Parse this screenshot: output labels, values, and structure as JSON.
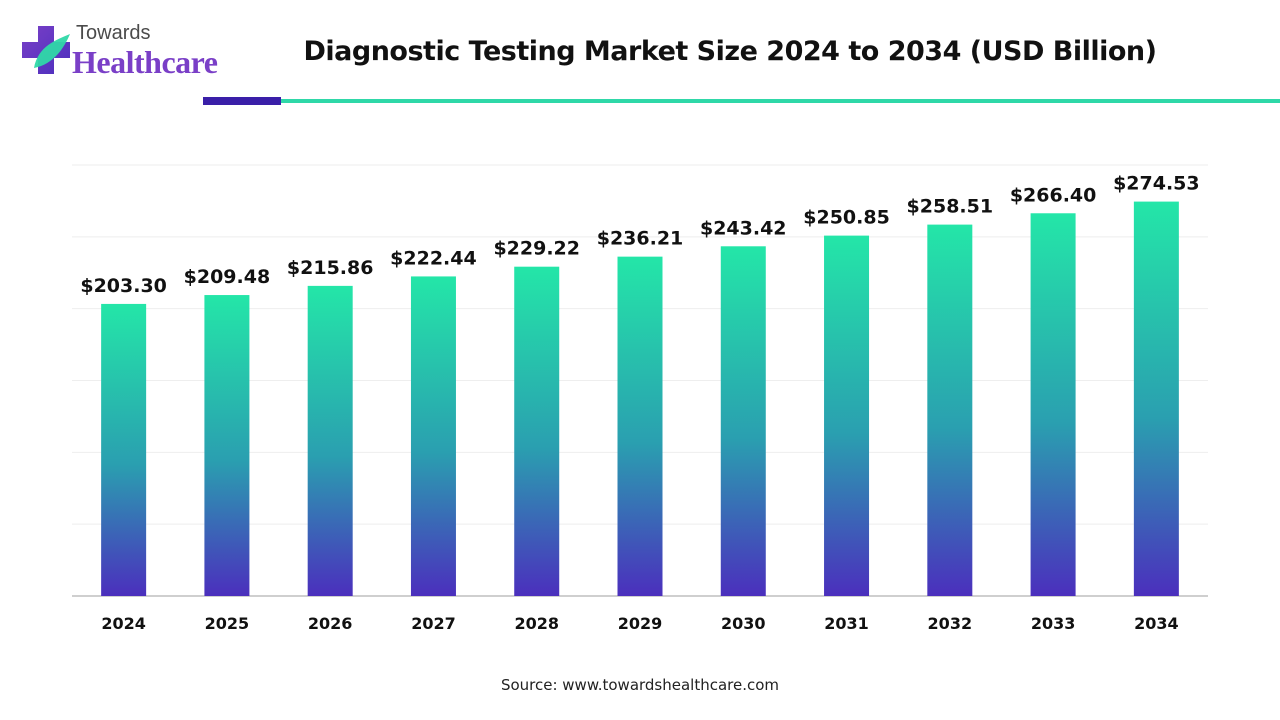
{
  "brand": {
    "top": "Towards",
    "main": "Healthcare"
  },
  "header": {
    "title": "Diagnostic Testing Market Size 2024 to 2034 (USD Billion)"
  },
  "footer": {
    "source": "Source: www.towardshealthcare.com"
  },
  "colors": {
    "bar_top": "#24e6a8",
    "bar_mid": "#2a9fb0",
    "bar_bottom": "#4b2fbd",
    "accent_dark": "#3a1fa8",
    "accent_teal": "#2fd8a8"
  },
  "chart_data": {
    "type": "bar",
    "title": "Diagnostic Testing Market Size 2024 to 2034 (USD Billion)",
    "categories": [
      "2024",
      "2025",
      "2026",
      "2027",
      "2028",
      "2029",
      "2030",
      "2031",
      "2032",
      "2033",
      "2034"
    ],
    "values": [
      203.3,
      209.48,
      215.86,
      222.44,
      229.22,
      236.21,
      243.42,
      250.85,
      258.51,
      266.4,
      274.53
    ],
    "data_labels": [
      "$203.30",
      "$209.48",
      "$215.86",
      "$222.44",
      "$229.22",
      "$236.21",
      "$243.42",
      "$250.85",
      "$258.51",
      "$266.40",
      "$274.53"
    ],
    "xlabel": "",
    "ylabel": "",
    "ylim": [
      0,
      300
    ],
    "grid": true,
    "legend": "none"
  }
}
